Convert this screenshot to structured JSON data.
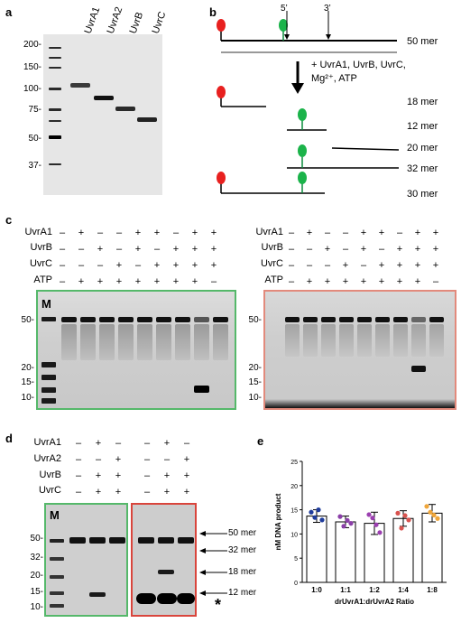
{
  "panels": {
    "a": "a",
    "b": "b",
    "c": "c",
    "d": "d",
    "e": "e"
  },
  "panel_a": {
    "lane_labels": [
      "UvrA1",
      "UvrA2",
      "UvrB",
      "UvrC"
    ],
    "markers": [
      "200-",
      "150-",
      "100-",
      "75-",
      "50-",
      "37-"
    ]
  },
  "panel_b": {
    "cut_labels": [
      "5’",
      "3’"
    ],
    "length_labels": [
      "50 mer",
      "18 mer",
      "12 mer",
      "20 mer",
      "32 mer",
      "30 mer"
    ],
    "reaction_label": "+ UvrA1, UvrB, UvrC, Mg²⁺, ATP"
  },
  "panel_c": {
    "row_labels": [
      "UvrA1",
      "UvrB",
      "UvrC",
      "ATP"
    ],
    "rows": [
      [
        "–",
        "+",
        "–",
        "–",
        "+",
        "+",
        "–",
        "+",
        "+"
      ],
      [
        "–",
        "–",
        "+",
        "–",
        "+",
        "–",
        "+",
        "+",
        "+"
      ],
      [
        "–",
        "–",
        "–",
        "+",
        "–",
        "+",
        "+",
        "+",
        "+"
      ],
      [
        "–",
        "+",
        "+",
        "+",
        "+",
        "+",
        "+",
        "+",
        "–"
      ]
    ],
    "left_markers": [
      "50-",
      "20-",
      "15-",
      "10-"
    ],
    "right_markers": [
      "50-",
      "20-",
      "15-",
      "10-"
    ],
    "ladder_label": "M"
  },
  "panel_d": {
    "row_labels": [
      "UvrA1",
      "UvrA2",
      "UvrB",
      "UvrC"
    ],
    "left_rows": [
      [
        "–",
        "+",
        "–"
      ],
      [
        "–",
        "–",
        "+"
      ],
      [
        "–",
        "+",
        "+"
      ],
      [
        "–",
        "+",
        "+"
      ]
    ],
    "right_rows": [
      [
        "–",
        "+",
        "–"
      ],
      [
        "–",
        "–",
        "+"
      ],
      [
        "–",
        "+",
        "+"
      ],
      [
        "–",
        "+",
        "+"
      ]
    ],
    "markers": [
      "50-",
      "32-",
      "20-",
      "15-",
      "10-"
    ],
    "ladder_label": "M",
    "arrow_labels": [
      "50 mer",
      "32 mer",
      "18 mer",
      "12 mer"
    ],
    "asterisk": "*"
  },
  "chart_data": {
    "type": "bar",
    "categories": [
      "1:0",
      "1:1",
      "1:2",
      "1:4",
      "1:8"
    ],
    "values": [
      13.7,
      12.5,
      12.2,
      13.2,
      14.3
    ],
    "errors": [
      1.3,
      1.2,
      2.3,
      1.6,
      1.8
    ],
    "points": [
      [
        14.5,
        12.9,
        13.4,
        15.0
      ],
      [
        13.6,
        12.2,
        11.6,
        12.8
      ],
      [
        14.0,
        10.3,
        13.3,
        11.9
      ],
      [
        14.3,
        12.9,
        11.2,
        13.8
      ],
      [
        15.7,
        13.2,
        14.5,
        13.9
      ]
    ],
    "colors": [
      "#1f3c9c",
      "#8b3fa8",
      "#9b3fb0",
      "#d9534f",
      "#f0a63a"
    ],
    "ylabel": "nM DNA product",
    "xlabel": "drUvrA1:drUvrA2 Ratio",
    "ylim": [
      0,
      25
    ],
    "yticks": [
      "0",
      "5",
      "10",
      "15",
      "20",
      "25"
    ]
  }
}
